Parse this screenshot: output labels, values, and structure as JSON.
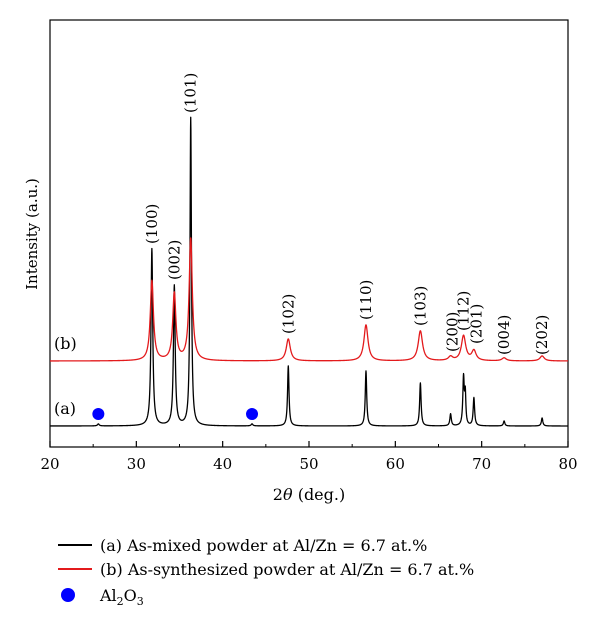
{
  "chart_data": {
    "type": "line",
    "xlabel": "2θ (deg.)",
    "ylabel": "Intensity (a.u.)",
    "xlim": [
      20,
      80
    ],
    "xticks": [
      20,
      30,
      40,
      50,
      60,
      70,
      80
    ],
    "y_ticks_shown": false,
    "grid": false,
    "legend_placement": "below",
    "series": [
      {
        "key": "a",
        "name": "(a) As-mixed powder at Al/Zn = 6.7 at.%",
        "curve_label": "(a)",
        "color": "#000000",
        "baseline": 0,
        "peaks": [
          {
            "x": 25.6,
            "y": 2,
            "w": 0.12
          },
          {
            "x": 31.8,
            "y": 177,
            "w": 0.12
          },
          {
            "x": 34.4,
            "y": 140,
            "w": 0.12
          },
          {
            "x": 36.3,
            "y": 308,
            "w": 0.1
          },
          {
            "x": 43.4,
            "y": 2,
            "w": 0.12
          },
          {
            "x": 47.6,
            "y": 60,
            "w": 0.1
          },
          {
            "x": 56.6,
            "y": 55,
            "w": 0.1
          },
          {
            "x": 62.9,
            "y": 43,
            "w": 0.1
          },
          {
            "x": 66.4,
            "y": 12,
            "w": 0.1
          },
          {
            "x": 67.9,
            "y": 48,
            "w": 0.1
          },
          {
            "x": 68.1,
            "y": 30,
            "w": 0.08
          },
          {
            "x": 69.1,
            "y": 28,
            "w": 0.1
          },
          {
            "x": 72.6,
            "y": 5,
            "w": 0.1
          },
          {
            "x": 77.0,
            "y": 8,
            "w": 0.1
          }
        ]
      },
      {
        "key": "b",
        "name": "(b) As-synthesized powder at Al/Zn = 6.7 at.%",
        "curve_label": "(b)",
        "color": "#e31a1c",
        "baseline": 65,
        "peaks": [
          {
            "x": 31.8,
            "y": 80,
            "w": 0.22
          },
          {
            "x": 34.4,
            "y": 67,
            "w": 0.22
          },
          {
            "x": 36.3,
            "y": 122,
            "w": 0.22
          },
          {
            "x": 47.6,
            "y": 22,
            "w": 0.28
          },
          {
            "x": 56.6,
            "y": 36,
            "w": 0.28
          },
          {
            "x": 62.9,
            "y": 30,
            "w": 0.3
          },
          {
            "x": 66.4,
            "y": 4,
            "w": 0.3
          },
          {
            "x": 67.9,
            "y": 25,
            "w": 0.3
          },
          {
            "x": 69.1,
            "y": 10,
            "w": 0.3
          },
          {
            "x": 72.6,
            "y": 3,
            "w": 0.3
          },
          {
            "x": 77.0,
            "y": 5,
            "w": 0.3
          }
        ]
      }
    ],
    "markers": {
      "name": "Al2O3",
      "label_main": "Al",
      "label_sub1": "2",
      "label_mid": "O",
      "label_sub2": "3",
      "color": "#0000ff",
      "x": [
        25.6,
        43.4
      ],
      "y": 12
    },
    "peak_labels": [
      {
        "text": "(100)",
        "x": 31.8,
        "y": 182
      },
      {
        "text": "(002)",
        "x": 34.4,
        "y": 146
      },
      {
        "text": "(101)",
        "x": 36.3,
        "y": 313
      },
      {
        "text": "(102)",
        "x": 47.6,
        "y": 92
      },
      {
        "text": "(110)",
        "x": 56.6,
        "y": 106
      },
      {
        "text": "(103)",
        "x": 62.9,
        "y": 100
      },
      {
        "text": "(200)",
        "x": 66.6,
        "y": 74
      },
      {
        "text": "(112)",
        "x": 67.9,
        "y": 95
      },
      {
        "text": "(201)",
        "x": 69.4,
        "y": 82
      },
      {
        "text": "(004)",
        "x": 72.6,
        "y": 71
      },
      {
        "text": "(202)",
        "x": 77.0,
        "y": 71
      }
    ]
  }
}
